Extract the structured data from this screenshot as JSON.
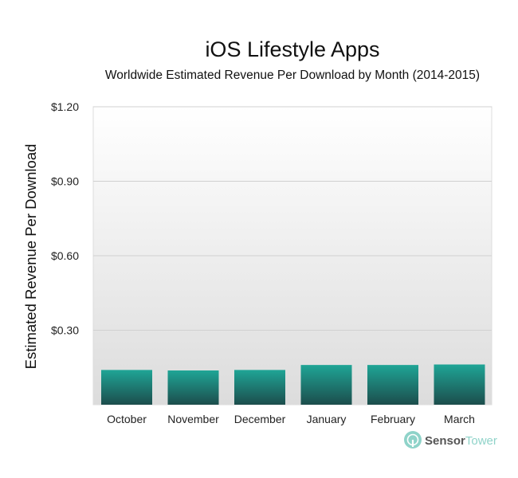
{
  "chart_data": {
    "type": "bar",
    "title": "iOS Lifestyle Apps",
    "subtitle": "Worldwide Estimated Revenue Per Download by Month (2014-2015)",
    "xlabel": "",
    "ylabel": "Estimated Revenue Per Download",
    "categories": [
      "October",
      "November",
      "December",
      "January",
      "February",
      "March"
    ],
    "values": [
      0.14,
      0.138,
      0.14,
      0.16,
      0.16,
      0.162
    ],
    "ylim": [
      0,
      1.2
    ],
    "yticks": [
      0.3,
      0.6,
      0.9,
      1.2
    ],
    "ytick_labels": [
      "$0.30",
      "$0.60",
      "$0.90",
      "$1.20"
    ],
    "grid": true,
    "legend": "none",
    "colors": {
      "bar_top": "#1fa596",
      "bar_bottom": "#1c4d4c",
      "plot_bg_top": "#ffffff",
      "plot_bg_bottom": "#dcdcdc",
      "grid": "#d0d0d0"
    }
  },
  "brand": {
    "name_part1": "Sensor",
    "name_part2": "Tower",
    "icon": "sensor-tower-logo-icon",
    "color_dark": "#555555",
    "color_accent": "#8fd3c9"
  }
}
